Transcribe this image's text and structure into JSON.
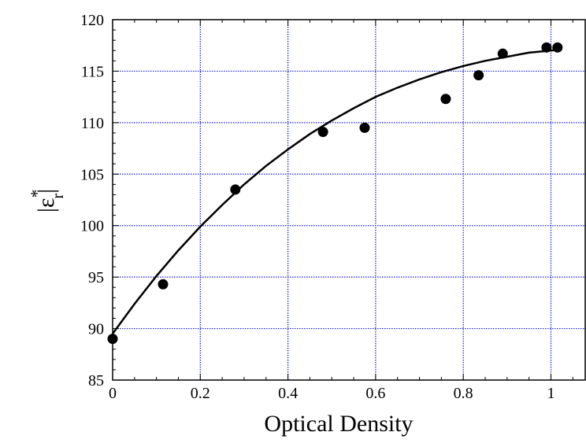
{
  "chart_data": {
    "type": "scatter",
    "xlabel": "Optical Density",
    "ylabel": {
      "prefix": "|ε",
      "superscript": "*",
      "subscript": "r",
      "suffix": "|"
    },
    "xlim": [
      0,
      1.08
    ],
    "ylim": [
      85,
      120
    ],
    "x_ticks": [
      0,
      0.2,
      0.4,
      0.6,
      0.8,
      1
    ],
    "x_tick_labels": [
      "0",
      "0.2",
      "0.4",
      "0.6",
      "0.8",
      "1"
    ],
    "y_ticks": [
      85,
      90,
      95,
      100,
      105,
      110,
      115,
      120
    ],
    "y_tick_labels": [
      "85",
      "90",
      "95",
      "100",
      "105",
      "110",
      "115",
      "120"
    ],
    "grid": true,
    "grid_color": "#2222cc",
    "marker_color": "#000000",
    "series": [
      {
        "type": "scatter",
        "x": [
          0.0,
          0.115,
          0.28,
          0.48,
          0.575,
          0.76,
          0.835,
          0.89,
          0.99,
          1.015
        ],
        "y": [
          89.0,
          94.3,
          103.5,
          109.1,
          109.5,
          112.3,
          114.6,
          116.7,
          117.3,
          117.3
        ]
      },
      {
        "type": "line",
        "x": [
          0,
          0.05,
          0.1,
          0.15,
          0.2,
          0.25,
          0.3,
          0.35,
          0.4,
          0.45,
          0.5,
          0.55,
          0.6,
          0.65,
          0.7,
          0.75,
          0.8,
          0.85,
          0.9,
          0.95,
          1.0,
          1.02
        ],
        "y": [
          89.5,
          92.4,
          95.1,
          97.6,
          99.9,
          102.0,
          104.0,
          105.8,
          107.4,
          108.9,
          110.2,
          111.4,
          112.5,
          113.4,
          114.2,
          114.9,
          115.5,
          116.0,
          116.4,
          116.8,
          117.0,
          117.1
        ]
      }
    ]
  }
}
